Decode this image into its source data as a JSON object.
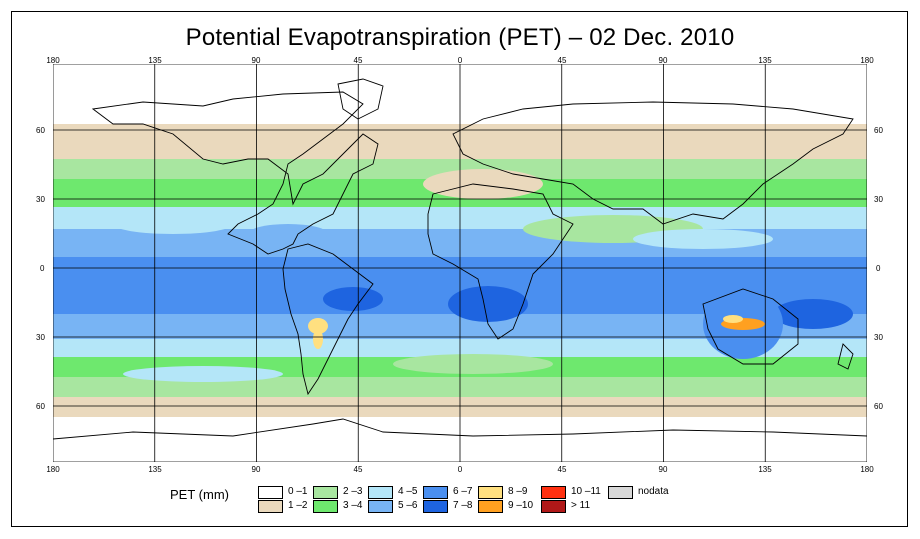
{
  "title": "Potential Evapotranspiration (PET) – 02 Dec. 2010",
  "lon_ticks": [
    "180",
    "135",
    "90",
    "45",
    "0",
    "45",
    "90",
    "135",
    "180"
  ],
  "lat_ticks": [
    "60",
    "30",
    "0",
    "30",
    "60"
  ],
  "legend": {
    "title": "PET (mm)",
    "classes": [
      {
        "label": "0 –1",
        "color": "#ffffff"
      },
      {
        "label": "1 –2",
        "color": "#ead9bd"
      },
      {
        "label": "2 –3",
        "color": "#a8e6a0"
      },
      {
        "label": "3 –4",
        "color": "#6ee86e"
      },
      {
        "label": "4 –5",
        "color": "#b4e6f8"
      },
      {
        "label": "5 –6",
        "color": "#78b4f4"
      },
      {
        "label": "6 –7",
        "color": "#4a8ff0"
      },
      {
        "label": "7 –8",
        "color": "#1e64e0"
      },
      {
        "label": "8 –9",
        "color": "#ffe080"
      },
      {
        "label": "9 –10",
        "color": "#ffa020"
      },
      {
        "label": "10 –11",
        "color": "#ff3010"
      },
      {
        "label": "> 11",
        "color": "#b01818"
      },
      {
        "label": "nodata",
        "color": "#d8d8d8"
      }
    ]
  }
}
